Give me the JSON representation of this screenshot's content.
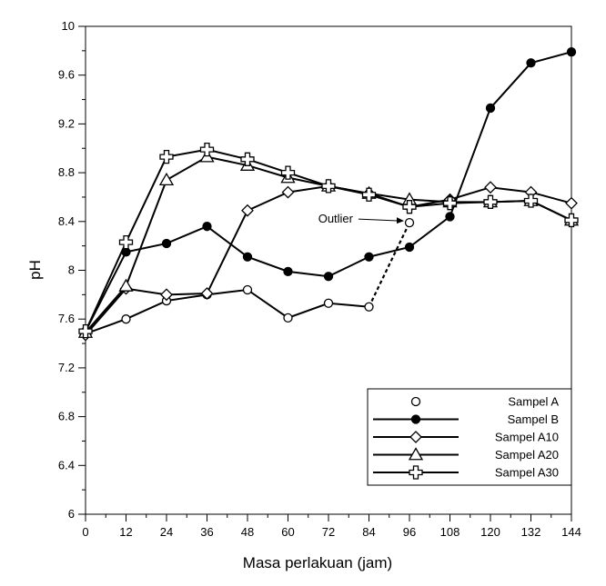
{
  "chart_data": {
    "type": "line",
    "title": "",
    "xlabel": "Masa perlakuan (jam)",
    "ylabel": "pH",
    "xlim": [
      0,
      144
    ],
    "ylim": [
      6,
      10
    ],
    "x_ticks": [
      0,
      12,
      24,
      36,
      48,
      60,
      72,
      84,
      96,
      108,
      120,
      132,
      144
    ],
    "y_ticks": [
      "6",
      "6.4",
      "6.8",
      "7.2",
      "7.6",
      "8",
      "8.4",
      "8.8",
      "9.2",
      "9.6",
      "10"
    ],
    "grid": false,
    "legend_position": "bottom-right",
    "x": [
      0,
      12,
      24,
      36,
      48,
      60,
      72,
      84,
      96,
      108,
      120,
      132,
      144
    ],
    "series": [
      {
        "name": "Sampel A",
        "marker": "open-circle",
        "line": "none",
        "points": [
          [
            0,
            7.48
          ],
          [
            12,
            7.6
          ],
          [
            24,
            7.75
          ],
          [
            36,
            7.8
          ],
          [
            48,
            7.84
          ],
          [
            60,
            7.61
          ],
          [
            72,
            7.73
          ],
          [
            84,
            7.7
          ],
          [
            96,
            8.39
          ]
        ],
        "outlier_segment": [
          [
            84,
            7.7
          ],
          [
            96,
            8.39
          ]
        ]
      },
      {
        "name": "Sampel B",
        "marker": "filled-circle",
        "line": "solid",
        "points": [
          [
            0,
            7.5
          ],
          [
            12,
            8.15
          ],
          [
            24,
            8.22
          ],
          [
            36,
            8.36
          ],
          [
            48,
            8.11
          ],
          [
            60,
            7.99
          ],
          [
            72,
            7.95
          ],
          [
            84,
            8.11
          ],
          [
            96,
            8.19
          ],
          [
            108,
            8.44
          ],
          [
            120,
            9.33
          ],
          [
            132,
            9.7
          ],
          [
            144,
            9.79
          ]
        ]
      },
      {
        "name": "Sampel A10",
        "marker": "open-diamond",
        "line": "solid",
        "points": [
          [
            0,
            7.47
          ],
          [
            12,
            7.85
          ],
          [
            24,
            7.8
          ],
          [
            36,
            7.81
          ],
          [
            48,
            8.49
          ],
          [
            60,
            8.64
          ],
          [
            72,
            8.69
          ],
          [
            84,
            8.63
          ],
          [
            96,
            8.52
          ],
          [
            108,
            8.58
          ],
          [
            120,
            8.68
          ],
          [
            132,
            8.64
          ],
          [
            144,
            8.55
          ]
        ]
      },
      {
        "name": "Sampel A20",
        "marker": "open-triangle",
        "line": "solid",
        "points": [
          [
            0,
            7.49
          ],
          [
            12,
            7.87
          ],
          [
            24,
            8.74
          ],
          [
            36,
            8.93
          ],
          [
            48,
            8.86
          ],
          [
            60,
            8.76
          ],
          [
            72,
            8.69
          ],
          [
            84,
            8.63
          ],
          [
            96,
            8.58
          ],
          [
            108,
            8.56
          ],
          [
            120,
            8.56
          ],
          [
            132,
            8.57
          ],
          [
            144,
            8.41
          ]
        ]
      },
      {
        "name": "Sampel A30",
        "marker": "open-cross",
        "line": "solid",
        "points": [
          [
            0,
            7.5
          ],
          [
            12,
            8.23
          ],
          [
            24,
            8.93
          ],
          [
            36,
            8.99
          ],
          [
            48,
            8.91
          ],
          [
            60,
            8.8
          ],
          [
            72,
            8.69
          ],
          [
            84,
            8.62
          ],
          [
            96,
            8.52
          ],
          [
            108,
            8.55
          ],
          [
            120,
            8.56
          ],
          [
            132,
            8.57
          ],
          [
            144,
            8.41
          ]
        ]
      }
    ],
    "annotation": {
      "text": "Outlier",
      "points_to": [
        96,
        8.39
      ]
    }
  }
}
